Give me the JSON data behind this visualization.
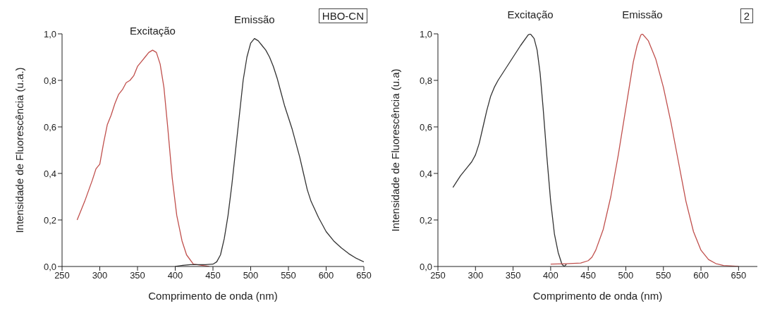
{
  "chart_data": [
    {
      "type": "line",
      "annotations": [
        "HBO-CN"
      ],
      "xlabel": "Comprimento de onda (nm)",
      "ylabel": "Intensidade de Fluorescência (u.a.)",
      "xlim": [
        250,
        650
      ],
      "xticks": [
        250,
        300,
        350,
        400,
        450,
        500,
        550,
        600,
        650
      ],
      "ylim": [
        0,
        1
      ],
      "yticks": [
        {
          "value": 0,
          "label": "0,0"
        },
        {
          "value": 0.2,
          "label": "0,2"
        },
        {
          "value": 0.4,
          "label": "0,4"
        },
        {
          "value": 0.6,
          "label": "0,6"
        },
        {
          "value": 0.8,
          "label": "0,8"
        },
        {
          "value": 1,
          "label": "1,0"
        }
      ],
      "grid": false,
      "legend": false,
      "marker": "none",
      "line_style": "solid",
      "series": [
        {
          "name": "Excitação",
          "color": "#c0504d",
          "x": [
            270,
            280,
            290,
            295,
            300,
            305,
            310,
            315,
            320,
            325,
            330,
            335,
            340,
            345,
            350,
            355,
            360,
            365,
            370,
            375,
            380,
            385,
            390,
            396,
            402,
            409,
            415,
            424,
            435,
            445
          ],
          "values": [
            0.2,
            0.28,
            0.37,
            0.42,
            0.44,
            0.53,
            0.61,
            0.65,
            0.7,
            0.74,
            0.76,
            0.79,
            0.8,
            0.82,
            0.86,
            0.88,
            0.9,
            0.92,
            0.93,
            0.92,
            0.87,
            0.77,
            0.6,
            0.38,
            0.22,
            0.11,
            0.05,
            0.01,
            0.005,
            0
          ]
        },
        {
          "name": "Emissão",
          "color": "#333333",
          "x": [
            400,
            410,
            420,
            440,
            450,
            455,
            460,
            465,
            470,
            475,
            480,
            485,
            490,
            495,
            500,
            505,
            510,
            515,
            520,
            525,
            530,
            535,
            540,
            545,
            550,
            555,
            560,
            565,
            570,
            575,
            580,
            590,
            600,
            610,
            620,
            630,
            640,
            650
          ],
          "values": [
            0,
            0.005,
            0.008,
            0.008,
            0.01,
            0.02,
            0.05,
            0.12,
            0.22,
            0.35,
            0.5,
            0.65,
            0.8,
            0.9,
            0.96,
            0.98,
            0.97,
            0.95,
            0.93,
            0.9,
            0.86,
            0.81,
            0.75,
            0.69,
            0.64,
            0.59,
            0.53,
            0.47,
            0.4,
            0.33,
            0.28,
            0.21,
            0.15,
            0.11,
            0.08,
            0.055,
            0.035,
            0.02
          ]
        }
      ]
    },
    {
      "type": "line",
      "annotations": [
        "2"
      ],
      "xlabel": "Comprimento de onda (nm)",
      "ylabel": "Intensidade de Fluorescência (u.a)",
      "xlim": [
        250,
        675
      ],
      "xticks": [
        250,
        300,
        350,
        400,
        450,
        500,
        550,
        600,
        650
      ],
      "ylim": [
        0,
        1
      ],
      "yticks": [
        {
          "value": 0,
          "label": "0,0"
        },
        {
          "value": 0.2,
          "label": "0,2"
        },
        {
          "value": 0.4,
          "label": "0,4"
        },
        {
          "value": 0.6,
          "label": "0,6"
        },
        {
          "value": 0.8,
          "label": "0,8"
        },
        {
          "value": 1,
          "label": "1,0"
        }
      ],
      "grid": false,
      "legend": false,
      "marker": "none",
      "line_style": "solid",
      "series": [
        {
          "name": "Excitação",
          "color": "#333333",
          "x": [
            270,
            280,
            290,
            295,
            300,
            305,
            310,
            315,
            320,
            325,
            330,
            340,
            350,
            360,
            370,
            373,
            378,
            382,
            386,
            390,
            395,
            400,
            405,
            410,
            415,
            418,
            421
          ],
          "values": [
            0.34,
            0.39,
            0.43,
            0.45,
            0.48,
            0.53,
            0.6,
            0.67,
            0.73,
            0.77,
            0.8,
            0.85,
            0.9,
            0.95,
            0.995,
            1,
            0.98,
            0.93,
            0.83,
            0.68,
            0.47,
            0.28,
            0.14,
            0.06,
            0.01,
            0,
            0.01
          ]
        },
        {
          "name": "Emissão",
          "color": "#c0504d",
          "x": [
            400,
            420,
            440,
            450,
            455,
            460,
            470,
            480,
            490,
            500,
            510,
            515,
            520,
            522,
            530,
            540,
            550,
            560,
            570,
            580,
            590,
            600,
            610,
            620,
            630,
            650
          ],
          "values": [
            0.01,
            0.012,
            0.015,
            0.025,
            0.04,
            0.07,
            0.16,
            0.3,
            0.48,
            0.68,
            0.88,
            0.95,
            0.995,
            1,
            0.97,
            0.89,
            0.77,
            0.62,
            0.45,
            0.28,
            0.15,
            0.07,
            0.03,
            0.012,
            0.004,
            0
          ]
        }
      ]
    }
  ]
}
